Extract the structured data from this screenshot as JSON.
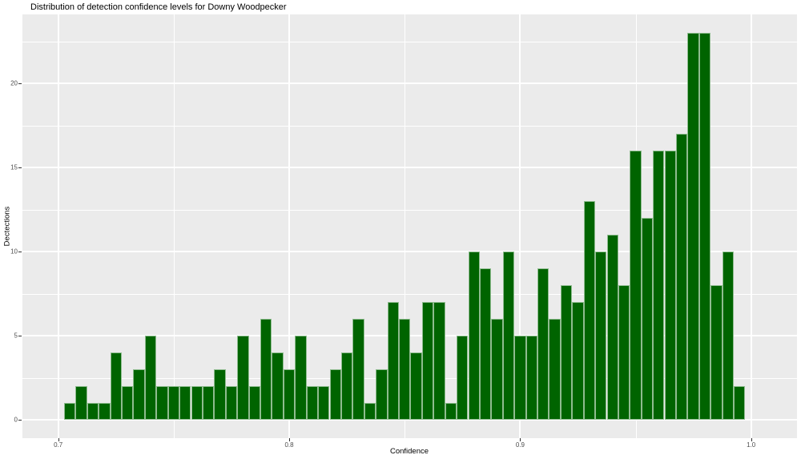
{
  "title": "Distribution of detection confidence levels for Downy Woodpecker",
  "chart_data": {
    "type": "bar",
    "subtype": "histogram",
    "title": "Distribution of detection confidence levels for Downy Woodpecker",
    "xlabel": "Confidence",
    "ylabel": "Dectections",
    "bin_width": 0.005,
    "bin_centers": [
      0.705,
      0.71,
      0.715,
      0.72,
      0.725,
      0.73,
      0.735,
      0.74,
      0.745,
      0.75,
      0.755,
      0.76,
      0.765,
      0.77,
      0.775,
      0.78,
      0.785,
      0.79,
      0.795,
      0.8,
      0.805,
      0.81,
      0.815,
      0.82,
      0.825,
      0.83,
      0.835,
      0.84,
      0.845,
      0.85,
      0.855,
      0.86,
      0.865,
      0.87,
      0.875,
      0.88,
      0.885,
      0.89,
      0.895,
      0.9,
      0.905,
      0.91,
      0.915,
      0.92,
      0.925,
      0.93,
      0.935,
      0.94,
      0.945,
      0.95,
      0.955,
      0.96,
      0.965,
      0.97,
      0.975,
      0.98,
      0.985,
      0.99,
      0.995
    ],
    "values": [
      1,
      2,
      1,
      1,
      4,
      2,
      3,
      5,
      2,
      2,
      2,
      2,
      2,
      3,
      2,
      5,
      2,
      6,
      4,
      3,
      5,
      2,
      2,
      3,
      4,
      6,
      1,
      3,
      7,
      6,
      4,
      7,
      7,
      1,
      5,
      10,
      9,
      6,
      10,
      5,
      5,
      9,
      6,
      8,
      7,
      13,
      10,
      11,
      8,
      16,
      12,
      16,
      16,
      17,
      23,
      23,
      8,
      10,
      2
    ],
    "x_major_ticks": [
      0.7,
      0.8,
      0.9,
      1.0
    ],
    "x_major_tick_labels": [
      "0.7",
      "0.8",
      "0.9",
      "1.0"
    ],
    "x_minor_ticks": [
      0.75,
      0.85,
      0.95
    ],
    "y_major_ticks": [
      0,
      5,
      10,
      15,
      20
    ],
    "y_major_tick_labels": [
      "0",
      "5",
      "10",
      "15",
      "20"
    ],
    "y_minor_ticks": [
      2.5,
      7.5,
      12.5,
      17.5,
      22.5
    ],
    "xlim": [
      0.6845,
      1.02
    ],
    "ylim": [
      -1.06,
      23.63
    ],
    "legend": "none",
    "grid": "on",
    "colors": {
      "bar_fill": "#006400",
      "bar_border": "#8fbc8f",
      "panel_background": "#ebebeb",
      "gridline": "#ffffff",
      "tick_label": "#4d4d4d",
      "axis_title": "#000000",
      "plot_background": "#ffffff"
    }
  }
}
